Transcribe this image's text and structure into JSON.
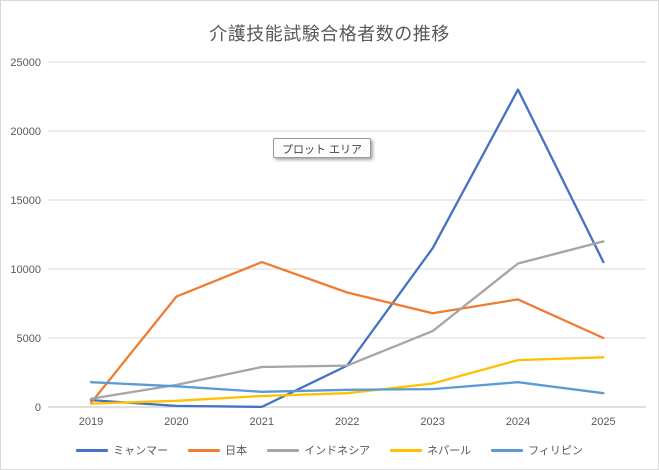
{
  "chart_data": {
    "type": "line",
    "title": "介護技能試験合格者数の推移",
    "categories": [
      "2019",
      "2020",
      "2021",
      "2022",
      "2023",
      "2024",
      "2025"
    ],
    "series": [
      {
        "name": "ミャンマー",
        "color": "#4472C4",
        "values": [
          500,
          80,
          10,
          3000,
          11500,
          23000,
          10500
        ]
      },
      {
        "name": "日本",
        "color": "#ED7D31",
        "values": [
          300,
          8000,
          10500,
          8300,
          6800,
          7800,
          5000
        ]
      },
      {
        "name": "インドネシア",
        "color": "#A5A5A5",
        "values": [
          600,
          1600,
          2900,
          3000,
          5500,
          10400,
          12000
        ]
      },
      {
        "name": "ネパール",
        "color": "#FFC000",
        "values": [
          250,
          450,
          800,
          1000,
          1700,
          3400,
          3600
        ]
      },
      {
        "name": "フィリピン",
        "color": "#5B9BD5",
        "values": [
          1800,
          1500,
          1100,
          1250,
          1300,
          1800,
          1000
        ]
      }
    ],
    "ylim": [
      0,
      25000
    ],
    "yticks": [
      0,
      5000,
      10000,
      15000,
      20000,
      25000
    ],
    "grid": true,
    "legend_position": "bottom",
    "gridline_color": "#d9d9d9",
    "axis_line_color": "#bfbfbf",
    "text_color": "#595959"
  },
  "tooltip": {
    "text": "プロット エリア"
  }
}
